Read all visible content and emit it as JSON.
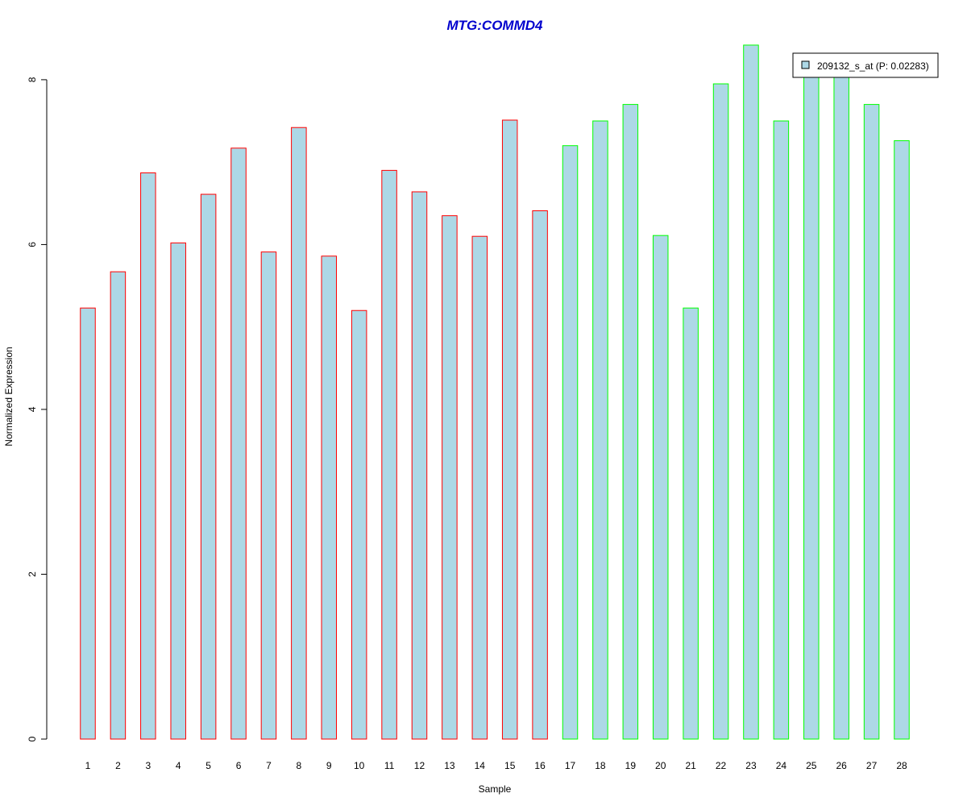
{
  "chart_data": {
    "type": "bar",
    "title": "MTG:COMMD4",
    "xlabel": "Sample",
    "ylabel": "Normalized Expression",
    "ylim": [
      0,
      8.4
    ],
    "yticks": [
      0,
      2,
      4,
      6,
      8
    ],
    "categories": [
      "1",
      "2",
      "3",
      "4",
      "5",
      "6",
      "7",
      "8",
      "9",
      "10",
      "11",
      "12",
      "13",
      "14",
      "15",
      "16",
      "17",
      "18",
      "19",
      "20",
      "21",
      "22",
      "23",
      "24",
      "25",
      "26",
      "27",
      "28"
    ],
    "series": [
      {
        "name": "209132_s_at (P: 0.02283)",
        "values": [
          5.23,
          5.67,
          6.87,
          6.02,
          6.61,
          7.17,
          5.91,
          7.42,
          5.86,
          5.2,
          6.9,
          6.64,
          6.35,
          6.1,
          7.51,
          6.41,
          7.2,
          7.5,
          7.7,
          6.11,
          5.23,
          7.95,
          8.42,
          7.5,
          8.1,
          8.1,
          7.7,
          7.26
        ]
      }
    ],
    "group_membership": [
      0,
      0,
      0,
      0,
      0,
      0,
      0,
      0,
      0,
      0,
      0,
      0,
      0,
      0,
      0,
      0,
      1,
      1,
      1,
      1,
      1,
      1,
      1,
      1,
      1,
      1,
      1,
      1
    ],
    "group_border_colors": [
      "#ff0000",
      "#00ff00"
    ],
    "bar_fill_color": "#add8e6",
    "title_color": "#0000cd",
    "grid": false,
    "legend_position": "top-right"
  }
}
